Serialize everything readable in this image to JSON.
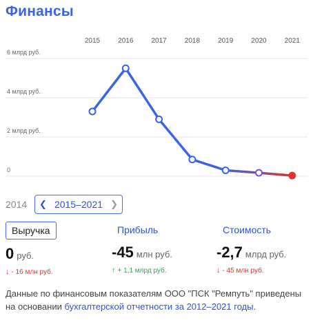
{
  "title": "Финансы",
  "chart_data": {
    "type": "line",
    "x": [
      "2015",
      "2016",
      "2017",
      "2018",
      "2019",
      "2020",
      "2021"
    ],
    "series": [
      {
        "values": [
          3.3,
          5.5,
          2.9,
          0.85,
          0.3,
          0.17,
          0.03
        ]
      }
    ],
    "ylabels": [
      "6 млрд руб.",
      "4 млрд руб.",
      "2 млрд руб.",
      "0"
    ],
    "yticks": [
      6,
      4,
      2,
      0
    ],
    "ylim": [
      0,
      6
    ],
    "grid": true,
    "colors": {
      "line": "#3a63e8",
      "end": "#e0342f",
      "point_stroke": "#3a63e8"
    }
  },
  "range": {
    "prev_year": "2014",
    "label": "2015–2021",
    "prev_icon": "chevron-left-icon",
    "next_icon": "chevron-right-icon"
  },
  "metrics": [
    {
      "tab": "Выручка",
      "value": "0",
      "unit": "руб.",
      "delta_arrow": "↓",
      "delta": "- 16 млн руб."
    },
    {
      "tab": "Прибыль",
      "value": "-45",
      "unit": "млн руб.",
      "delta_arrow": "↑",
      "delta": "+ 1,1 млрд руб."
    },
    {
      "tab": "Стоимость",
      "value": "-2,7",
      "unit": "млрд руб.",
      "delta_arrow": "↓",
      "delta": "- 45 млн руб."
    }
  ],
  "footer": {
    "text": "Данные по финансовым показателям ООО \"ПСК \"Ремпуть\" приведены на основании ",
    "link": "бухгалтерской отчетности за 2012–2021 годы",
    "end": "."
  }
}
